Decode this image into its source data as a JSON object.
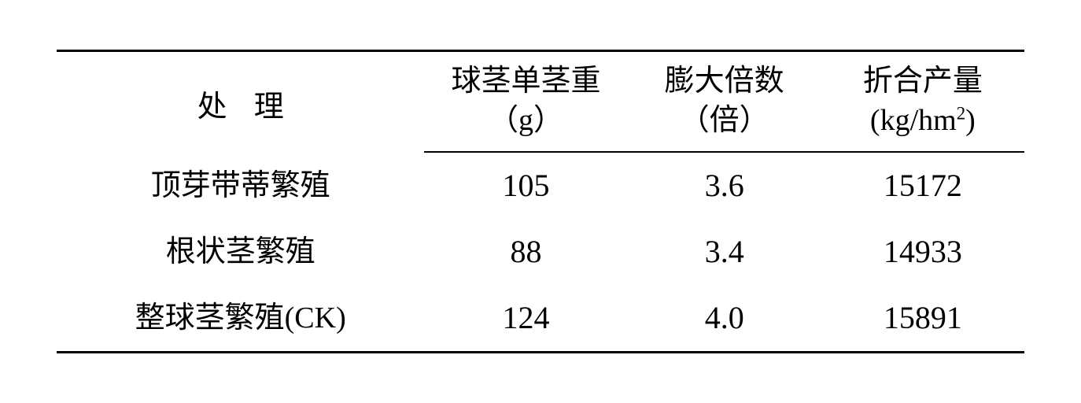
{
  "table": {
    "type": "table",
    "background_color": "#ffffff",
    "text_color": "#000000",
    "border_color": "#000000",
    "border_top_width": 3,
    "border_mid_width": 2,
    "border_bottom_width": 3,
    "header_fontsize": 38,
    "cell_fontsize": 38,
    "number_fontsize": 40,
    "column_widths_percent": [
      38,
      21,
      20,
      21
    ],
    "columns": [
      {
        "label_line1": "处理",
        "label_line2": "",
        "align": "center"
      },
      {
        "label_line1": "球茎单茎重",
        "label_line2": "（g）",
        "align": "center"
      },
      {
        "label_line1": "膨大倍数",
        "label_line2": "（倍）",
        "align": "center"
      },
      {
        "label_line1": "折合产量",
        "label_line2_prefix": "(kg/hm",
        "label_line2_sup": "2",
        "label_line2_suffix": ")",
        "align": "center"
      }
    ],
    "rows": [
      {
        "treatment": "顶芽带蒂繁殖",
        "corm_weight_g": "105",
        "expansion_multiple": "3.6",
        "yield_kg_per_hm2": "15172"
      },
      {
        "treatment": "根状茎繁殖",
        "corm_weight_g": "88",
        "expansion_multiple": "3.4",
        "yield_kg_per_hm2": "14933"
      },
      {
        "treatment": "整球茎繁殖(CK)",
        "corm_weight_g": "124",
        "expansion_multiple": "4.0",
        "yield_kg_per_hm2": "15891"
      }
    ]
  }
}
